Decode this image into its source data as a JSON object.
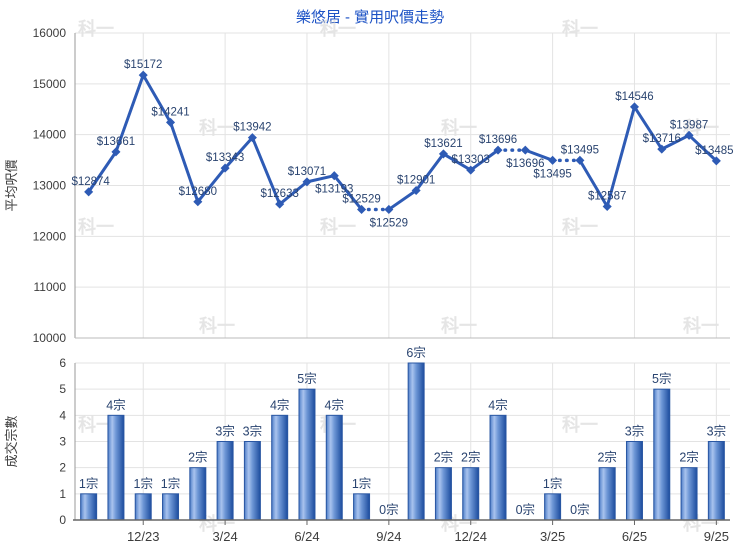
{
  "title": "樂悠居 - 實用呎價走勢",
  "watermark_text": "科一",
  "colors": {
    "title": "#1c52c5",
    "line": "#2e5bb5",
    "data_label": "#2a4470",
    "axis_text": "#3d3d3d",
    "grid": "#e3e3e3",
    "axis_line": "#9a9a9a",
    "bottom_axis_line": "#666666",
    "bar_edge": "#2a57a3",
    "bar_dark": "#1c4c9e",
    "bar_light": "#a9c3ee",
    "bar_mid": "#4272bd",
    "watermark": "#d0d0d0"
  },
  "chart_data": [
    {
      "type": "line",
      "name": "price-trend",
      "title": "樂悠居 - 實用呎價走勢",
      "ylabel": "平均呎價",
      "ylim": [
        10000,
        16000
      ],
      "ytick_step": 1000,
      "yticks": [
        "10000",
        "11000",
        "12000",
        "13000",
        "14000",
        "15000",
        "16000"
      ],
      "values": [
        12874,
        13661,
        15172,
        14241,
        12680,
        13343,
        13942,
        12633,
        13071,
        13193,
        12529,
        12529,
        12901,
        13621,
        13303,
        13696,
        13696,
        13495,
        13495,
        12587,
        14546,
        13716,
        13987,
        13485
      ],
      "point_labels": [
        "$12874",
        "$13661",
        "$15172",
        "$14241",
        "$12680",
        "$13343",
        "$13942",
        "$12633",
        "$13071",
        "$13193",
        "$12529",
        "$12529",
        "$12901",
        "$13621",
        "$13303",
        "$13696",
        "$13696",
        "$13495",
        "$13495",
        "$12587",
        "$14546",
        "$13716",
        "$13987",
        "$13485"
      ],
      "dotted_segment_end_indices": [
        11,
        16,
        18
      ],
      "label_below_indices": [
        9,
        11,
        16,
        17
      ],
      "grid": true,
      "legend": "none",
      "xticks": [
        {
          "index": 2,
          "label": "12/23"
        },
        {
          "index": 5,
          "label": "3/24"
        },
        {
          "index": 8,
          "label": "6/24"
        },
        {
          "index": 11,
          "label": "9/24"
        },
        {
          "index": 14,
          "label": "12/24"
        },
        {
          "index": 17,
          "label": "3/25"
        },
        {
          "index": 20,
          "label": "6/25"
        },
        {
          "index": 23,
          "label": "9/25"
        }
      ]
    },
    {
      "type": "bar",
      "name": "deal-count",
      "ylabel": "成交宗數",
      "ylim": [
        0,
        6
      ],
      "ytick_step": 1,
      "yticks": [
        "0",
        "1",
        "2",
        "3",
        "4",
        "5",
        "6"
      ],
      "values": [
        1,
        4,
        1,
        1,
        2,
        3,
        3,
        4,
        5,
        4,
        1,
        0,
        6,
        2,
        2,
        4,
        0,
        1,
        0,
        2,
        3,
        5,
        2,
        3
      ],
      "bar_labels": [
        "1宗",
        "4宗",
        "1宗",
        "1宗",
        "2宗",
        "3宗",
        "3宗",
        "4宗",
        "5宗",
        "4宗",
        "1宗",
        "0宗",
        "6宗",
        "2宗",
        "2宗",
        "4宗",
        "0宗",
        "1宗",
        "0宗",
        "2宗",
        "3宗",
        "5宗",
        "2宗",
        "3宗"
      ],
      "grid": true,
      "legend": "none",
      "xticks": [
        {
          "index": 2,
          "label": "12/23"
        },
        {
          "index": 5,
          "label": "3/24"
        },
        {
          "index": 8,
          "label": "6/24"
        },
        {
          "index": 11,
          "label": "9/24"
        },
        {
          "index": 14,
          "label": "12/24"
        },
        {
          "index": 17,
          "label": "3/25"
        },
        {
          "index": 20,
          "label": "6/25"
        },
        {
          "index": 23,
          "label": "9/25"
        }
      ]
    }
  ]
}
